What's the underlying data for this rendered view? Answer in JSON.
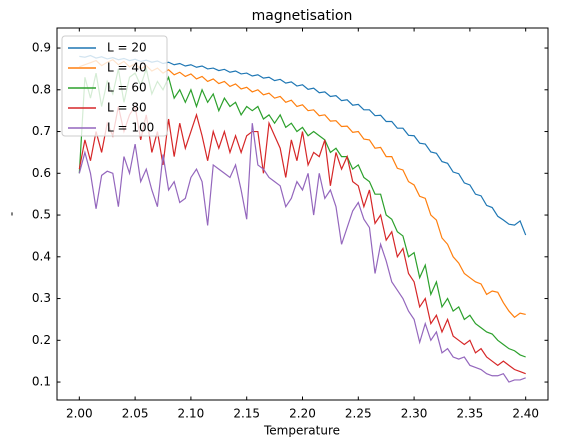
{
  "chart_data": {
    "type": "line",
    "title": "magnetisation",
    "xlabel": "Temperature",
    "ylabel": "-",
    "x": [
      2.0,
      2.005,
      2.01,
      2.015,
      2.02,
      2.025,
      2.03,
      2.035,
      2.04,
      2.045,
      2.05,
      2.055,
      2.06,
      2.065,
      2.07,
      2.075,
      2.08,
      2.085,
      2.09,
      2.095,
      2.1,
      2.105,
      2.11,
      2.115,
      2.12,
      2.125,
      2.13,
      2.135,
      2.14,
      2.145,
      2.15,
      2.155,
      2.16,
      2.165,
      2.17,
      2.175,
      2.18,
      2.185,
      2.19,
      2.195,
      2.2,
      2.205,
      2.21,
      2.215,
      2.22,
      2.225,
      2.23,
      2.235,
      2.24,
      2.245,
      2.25,
      2.255,
      2.26,
      2.265,
      2.27,
      2.275,
      2.28,
      2.285,
      2.29,
      2.295,
      2.3,
      2.305,
      2.31,
      2.315,
      2.32,
      2.325,
      2.33,
      2.335,
      2.34,
      2.345,
      2.35,
      2.355,
      2.36,
      2.365,
      2.37,
      2.375,
      2.38,
      2.385,
      2.39,
      2.395,
      2.4
    ],
    "series": [
      {
        "name": "L = 20",
        "color": "#1f77b4",
        "values": [
          0.88,
          0.878,
          0.882,
          0.876,
          0.879,
          0.874,
          0.877,
          0.872,
          0.875,
          0.87,
          0.873,
          0.868,
          0.871,
          0.866,
          0.869,
          0.863,
          0.866,
          0.86,
          0.863,
          0.857,
          0.86,
          0.854,
          0.857,
          0.85,
          0.852,
          0.846,
          0.849,
          0.842,
          0.845,
          0.838,
          0.84,
          0.833,
          0.836,
          0.828,
          0.83,
          0.822,
          0.825,
          0.816,
          0.819,
          0.809,
          0.812,
          0.801,
          0.804,
          0.793,
          0.795,
          0.784,
          0.786,
          0.774,
          0.776,
          0.763,
          0.765,
          0.752,
          0.752,
          0.738,
          0.739,
          0.724,
          0.724,
          0.708,
          0.708,
          0.691,
          0.69,
          0.672,
          0.67,
          0.651,
          0.648,
          0.628,
          0.624,
          0.603,
          0.599,
          0.577,
          0.572,
          0.55,
          0.546,
          0.523,
          0.518,
          0.497,
          0.488,
          0.478,
          0.476,
          0.486,
          0.452
        ]
      },
      {
        "name": "L = 40",
        "color": "#ff7f0e",
        "values": [
          0.855,
          0.86,
          0.865,
          0.87,
          0.858,
          0.866,
          0.872,
          0.86,
          0.868,
          0.855,
          0.862,
          0.85,
          0.858,
          0.845,
          0.852,
          0.84,
          0.848,
          0.836,
          0.842,
          0.832,
          0.838,
          0.826,
          0.832,
          0.82,
          0.826,
          0.815,
          0.82,
          0.808,
          0.814,
          0.802,
          0.806,
          0.795,
          0.8,
          0.788,
          0.792,
          0.78,
          0.784,
          0.77,
          0.775,
          0.76,
          0.764,
          0.75,
          0.752,
          0.738,
          0.74,
          0.725,
          0.726,
          0.712,
          0.713,
          0.698,
          0.7,
          0.682,
          0.68,
          0.66,
          0.662,
          0.64,
          0.64,
          0.612,
          0.608,
          0.58,
          0.572,
          0.545,
          0.54,
          0.5,
          0.488,
          0.445,
          0.43,
          0.4,
          0.385,
          0.36,
          0.35,
          0.34,
          0.335,
          0.31,
          0.318,
          0.315,
          0.29,
          0.27,
          0.255,
          0.265,
          0.262
        ]
      },
      {
        "name": "L = 60",
        "color": "#2ca02c",
        "values": [
          0.6,
          0.83,
          0.78,
          0.84,
          0.76,
          0.82,
          0.79,
          0.85,
          0.77,
          0.83,
          0.84,
          0.81,
          0.85,
          0.79,
          0.82,
          0.8,
          0.83,
          0.78,
          0.8,
          0.77,
          0.8,
          0.76,
          0.8,
          0.77,
          0.79,
          0.75,
          0.78,
          0.76,
          0.77,
          0.74,
          0.76,
          0.75,
          0.76,
          0.73,
          0.74,
          0.72,
          0.74,
          0.71,
          0.72,
          0.7,
          0.71,
          0.69,
          0.7,
          0.69,
          0.68,
          0.65,
          0.66,
          0.64,
          0.64,
          0.61,
          0.62,
          0.59,
          0.58,
          0.55,
          0.55,
          0.5,
          0.49,
          0.46,
          0.45,
          0.4,
          0.41,
          0.35,
          0.38,
          0.31,
          0.34,
          0.28,
          0.3,
          0.27,
          0.28,
          0.25,
          0.26,
          0.24,
          0.23,
          0.22,
          0.215,
          0.2,
          0.19,
          0.18,
          0.175,
          0.165,
          0.16
        ]
      },
      {
        "name": "L = 80",
        "color": "#d62728",
        "values": [
          0.61,
          0.68,
          0.63,
          0.7,
          0.65,
          0.72,
          0.69,
          0.76,
          0.7,
          0.74,
          0.76,
          0.68,
          0.74,
          0.65,
          0.7,
          0.62,
          0.73,
          0.64,
          0.72,
          0.66,
          0.7,
          0.74,
          0.69,
          0.63,
          0.7,
          0.66,
          0.7,
          0.65,
          0.69,
          0.65,
          0.69,
          0.7,
          0.7,
          0.6,
          0.72,
          0.69,
          0.66,
          0.59,
          0.68,
          0.63,
          0.7,
          0.62,
          0.65,
          0.64,
          0.68,
          0.57,
          0.65,
          0.61,
          0.64,
          0.58,
          0.57,
          0.52,
          0.56,
          0.48,
          0.5,
          0.44,
          0.46,
          0.4,
          0.42,
          0.36,
          0.34,
          0.28,
          0.3,
          0.24,
          0.26,
          0.22,
          0.25,
          0.21,
          0.2,
          0.19,
          0.2,
          0.17,
          0.18,
          0.16,
          0.15,
          0.14,
          0.15,
          0.14,
          0.13,
          0.125,
          0.12
        ]
      },
      {
        "name": "L = 100",
        "color": "#9467bd",
        "values": [
          0.6,
          0.65,
          0.6,
          0.515,
          0.595,
          0.605,
          0.6,
          0.52,
          0.64,
          0.6,
          0.67,
          0.58,
          0.61,
          0.56,
          0.52,
          0.645,
          0.56,
          0.58,
          0.53,
          0.54,
          0.59,
          0.61,
          0.58,
          0.475,
          0.62,
          0.61,
          0.6,
          0.59,
          0.62,
          0.56,
          0.49,
          0.72,
          0.62,
          0.61,
          0.59,
          0.58,
          0.57,
          0.52,
          0.54,
          0.58,
          0.56,
          0.6,
          0.5,
          0.6,
          0.54,
          0.56,
          0.52,
          0.43,
          0.47,
          0.51,
          0.53,
          0.49,
          0.47,
          0.36,
          0.43,
          0.39,
          0.34,
          0.32,
          0.3,
          0.27,
          0.25,
          0.195,
          0.24,
          0.2,
          0.22,
          0.17,
          0.18,
          0.16,
          0.155,
          0.16,
          0.14,
          0.135,
          0.13,
          0.12,
          0.115,
          0.115,
          0.12,
          0.1,
          0.105,
          0.105,
          0.11
        ]
      }
    ],
    "xlim": [
      1.98,
      2.42
    ],
    "ylim": [
      0.057,
      0.948
    ],
    "xticks": [
      {
        "value": 2,
        "label": "2.00"
      },
      2.05,
      {
        "value": 2.1,
        "label": "2.10"
      },
      2.15,
      {
        "value": 2.2,
        "label": "2.20"
      },
      2.25,
      {
        "value": 2.3,
        "label": "2.30"
      },
      2.35,
      {
        "value": 2.4,
        "label": "2.40"
      }
    ],
    "yticks": [
      0.1,
      0.2,
      0.3,
      0.4,
      0.5,
      0.6,
      0.7,
      0.8,
      0.9
    ],
    "legend": "upper left",
    "grid": false
  }
}
